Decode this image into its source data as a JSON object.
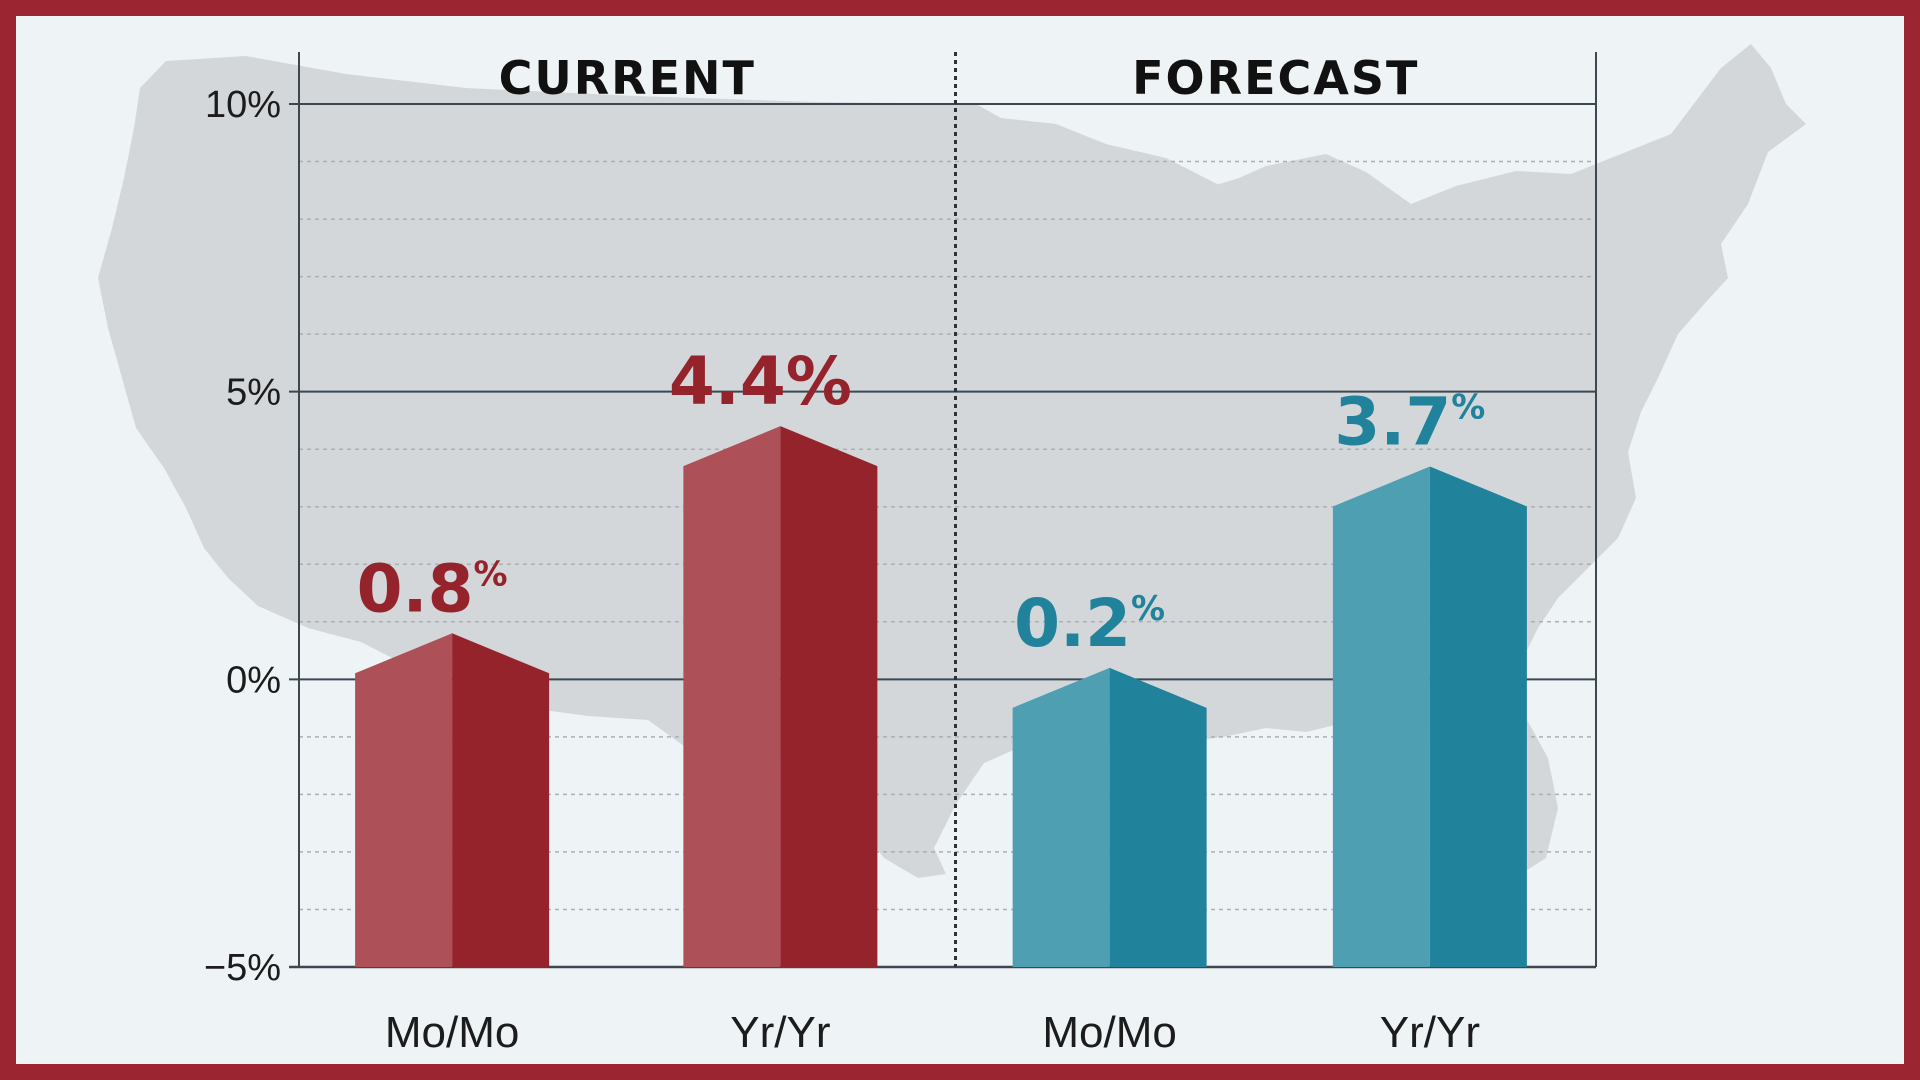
{
  "colors": {
    "frame": "#9b2530",
    "background": "#eef3f6",
    "map": "#d3d7da",
    "current_light": "#ad5058",
    "current_dark": "#94232c",
    "forecast_light": "#4f9fb2",
    "forecast_dark": "#21829b",
    "axis": "#3c4750",
    "grid_minor": "#a9b0b6"
  },
  "background_graphic": "us-map-silhouette",
  "chart_data": {
    "type": "bar",
    "ylim": [
      -5,
      10
    ],
    "y_ticks": [
      {
        "value": 10,
        "label": "10%"
      },
      {
        "value": 5,
        "label": "5%"
      },
      {
        "value": 0,
        "label": "0%"
      },
      {
        "value": -5,
        "label": "−5%"
      }
    ],
    "minor_grid_step": 1,
    "grid": true,
    "panels": [
      {
        "title": "CURRENT",
        "color_scheme": "current",
        "bars": [
          {
            "category": "Mo/Mo",
            "value": 0.8,
            "value_number": "0.8",
            "value_suffix": "%"
          },
          {
            "category": "Yr/Yr",
            "value": 4.4,
            "value_number": "4.4",
            "value_suffix": "%"
          }
        ]
      },
      {
        "title": "FORECAST",
        "color_scheme": "forecast",
        "bars": [
          {
            "category": "Mo/Mo",
            "value": 0.2,
            "value_number": "0.2",
            "value_suffix": "%"
          },
          {
            "category": "Yr/Yr",
            "value": 3.7,
            "value_number": "3.7",
            "value_suffix": "%"
          }
        ]
      }
    ]
  }
}
